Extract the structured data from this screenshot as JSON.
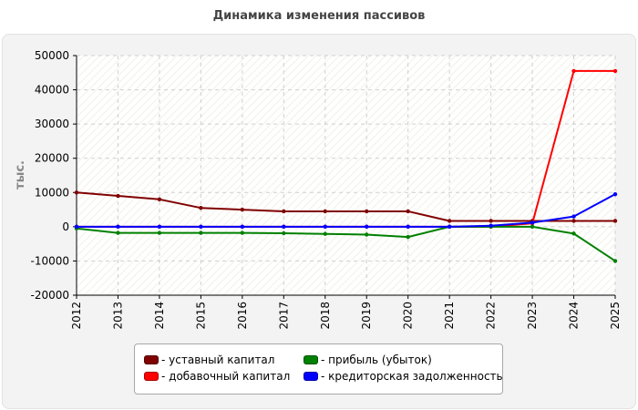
{
  "title": "Динамика изменения пассивов",
  "chart_data": {
    "type": "line",
    "ylabel": "тыс.",
    "xlabel": "",
    "x": [
      "2012",
      "2013",
      "2014",
      "2015",
      "2016",
      "2017",
      "2018",
      "2019",
      "2020",
      "2021",
      "2022",
      "2023",
      "2024",
      "2025"
    ],
    "ylim": [
      -20000,
      50000
    ],
    "yticks": [
      -20000,
      -10000,
      0,
      10000,
      20000,
      30000,
      40000,
      50000
    ],
    "grid": true,
    "legend_position": "bottom",
    "series": [
      {
        "name": "- уставный капитал",
        "color": "#800000",
        "values": [
          10000,
          9000,
          8000,
          5500,
          5000,
          4500,
          4500,
          4500,
          4500,
          1700,
          1700,
          1700,
          1700,
          1700
        ]
      },
      {
        "name": "- добавочный капитал",
        "color": "#ff0000",
        "values": [
          0,
          0,
          0,
          0,
          0,
          0,
          0,
          0,
          0,
          0,
          0,
          1000,
          45500,
          45500
        ]
      },
      {
        "name": "- прибыль (убыток)",
        "color": "#008000",
        "values": [
          -500,
          -1800,
          -1800,
          -1800,
          -1800,
          -1900,
          -2100,
          -2300,
          -3000,
          0,
          0,
          0,
          -2000,
          -10000
        ]
      },
      {
        "name": "- кредиторская задолженность",
        "color": "#0000ff",
        "values": [
          0,
          0,
          0,
          0,
          0,
          0,
          0,
          0,
          0,
          0,
          300,
          1200,
          3000,
          9500
        ]
      }
    ]
  }
}
